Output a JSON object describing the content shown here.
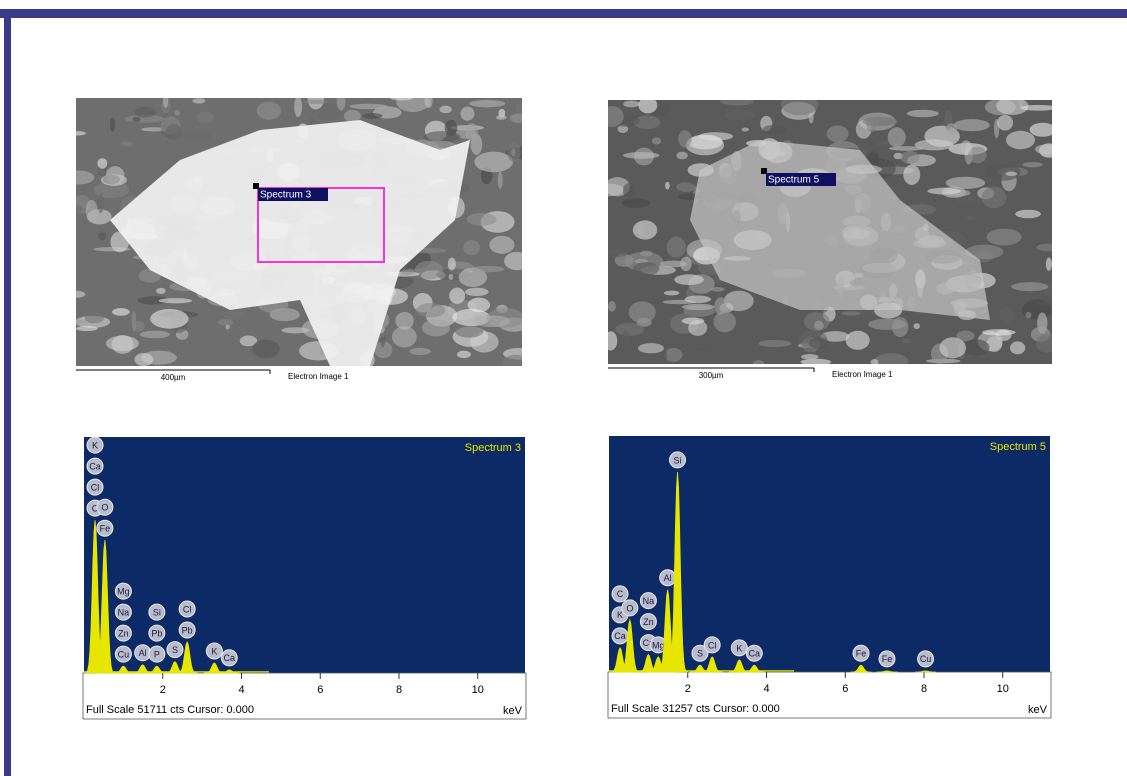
{
  "panels": [
    {
      "image": {
        "label": "Spectrum 3",
        "scale": "400µm",
        "caption": "Electron Image 1"
      }
    },
    {
      "image": {
        "label": "Spectrum 5",
        "scale": "300µm",
        "caption": "Electron Image 1"
      }
    }
  ],
  "chart_data": [
    {
      "type": "spectrum",
      "title": "Spectrum 3",
      "xlabel": "keV",
      "footer": "Full Scale 51711 cts Cursor: 0.000",
      "xlim": [
        0,
        11.2
      ],
      "ylim": [
        0,
        51711
      ],
      "xticks": [
        2,
        4,
        6,
        8,
        10
      ],
      "color": "#e6e600",
      "peaks": [
        {
          "x": 0.28,
          "y": 33500,
          "elements": [
            "K",
            "Ca",
            "Cl",
            "C"
          ]
        },
        {
          "x": 0.53,
          "y": 29100,
          "elements": [
            "O",
            "Fe"
          ]
        },
        {
          "x": 1.0,
          "y": 1500,
          "elements": [
            "Mg",
            "Na",
            "Zn",
            "Cu"
          ]
        },
        {
          "x": 1.49,
          "y": 1800,
          "elements": [
            "Al"
          ]
        },
        {
          "x": 1.85,
          "y": 1500,
          "elements": [
            "Si",
            "Pb",
            "P"
          ]
        },
        {
          "x": 2.31,
          "y": 2500,
          "elements": [
            "S"
          ]
        },
        {
          "x": 2.62,
          "y": 6800,
          "elements": [
            "Cl",
            "Pb"
          ]
        },
        {
          "x": 3.31,
          "y": 2200,
          "elements": [
            "K"
          ]
        },
        {
          "x": 3.69,
          "y": 700,
          "elements": [
            "Ca"
          ]
        }
      ]
    },
    {
      "type": "spectrum",
      "title": "Spectrum 5",
      "xlabel": "keV",
      "footer": "Full Scale 31257 cts Cursor: 0.000",
      "xlim": [
        0,
        11.2
      ],
      "ylim": [
        0,
        31257
      ],
      "xticks": [
        2,
        4,
        6,
        8,
        10
      ],
      "color": "#e6e600",
      "peaks": [
        {
          "x": 0.28,
          "y": 3200,
          "elements": [
            "C",
            "K",
            "Ca"
          ]
        },
        {
          "x": 0.53,
          "y": 6900,
          "elements": [
            "O"
          ]
        },
        {
          "x": 1.0,
          "y": 2300,
          "elements": [
            "Na",
            "Zn",
            "Cu"
          ]
        },
        {
          "x": 1.25,
          "y": 2000,
          "elements": [
            "Mg"
          ]
        },
        {
          "x": 1.49,
          "y": 10900,
          "elements": [
            "Al"
          ]
        },
        {
          "x": 1.74,
          "y": 26500,
          "elements": [
            "Si"
          ]
        },
        {
          "x": 2.31,
          "y": 900,
          "elements": [
            "S"
          ]
        },
        {
          "x": 2.62,
          "y": 2000,
          "elements": [
            "Cl"
          ]
        },
        {
          "x": 3.31,
          "y": 1600,
          "elements": [
            "K"
          ]
        },
        {
          "x": 3.69,
          "y": 900,
          "elements": [
            "Ca"
          ]
        },
        {
          "x": 6.4,
          "y": 900,
          "elements": [
            "Fe"
          ]
        },
        {
          "x": 7.06,
          "y": 150,
          "elements": [
            "Fe"
          ]
        },
        {
          "x": 8.04,
          "y": 150,
          "elements": [
            "Cu"
          ]
        }
      ]
    }
  ]
}
